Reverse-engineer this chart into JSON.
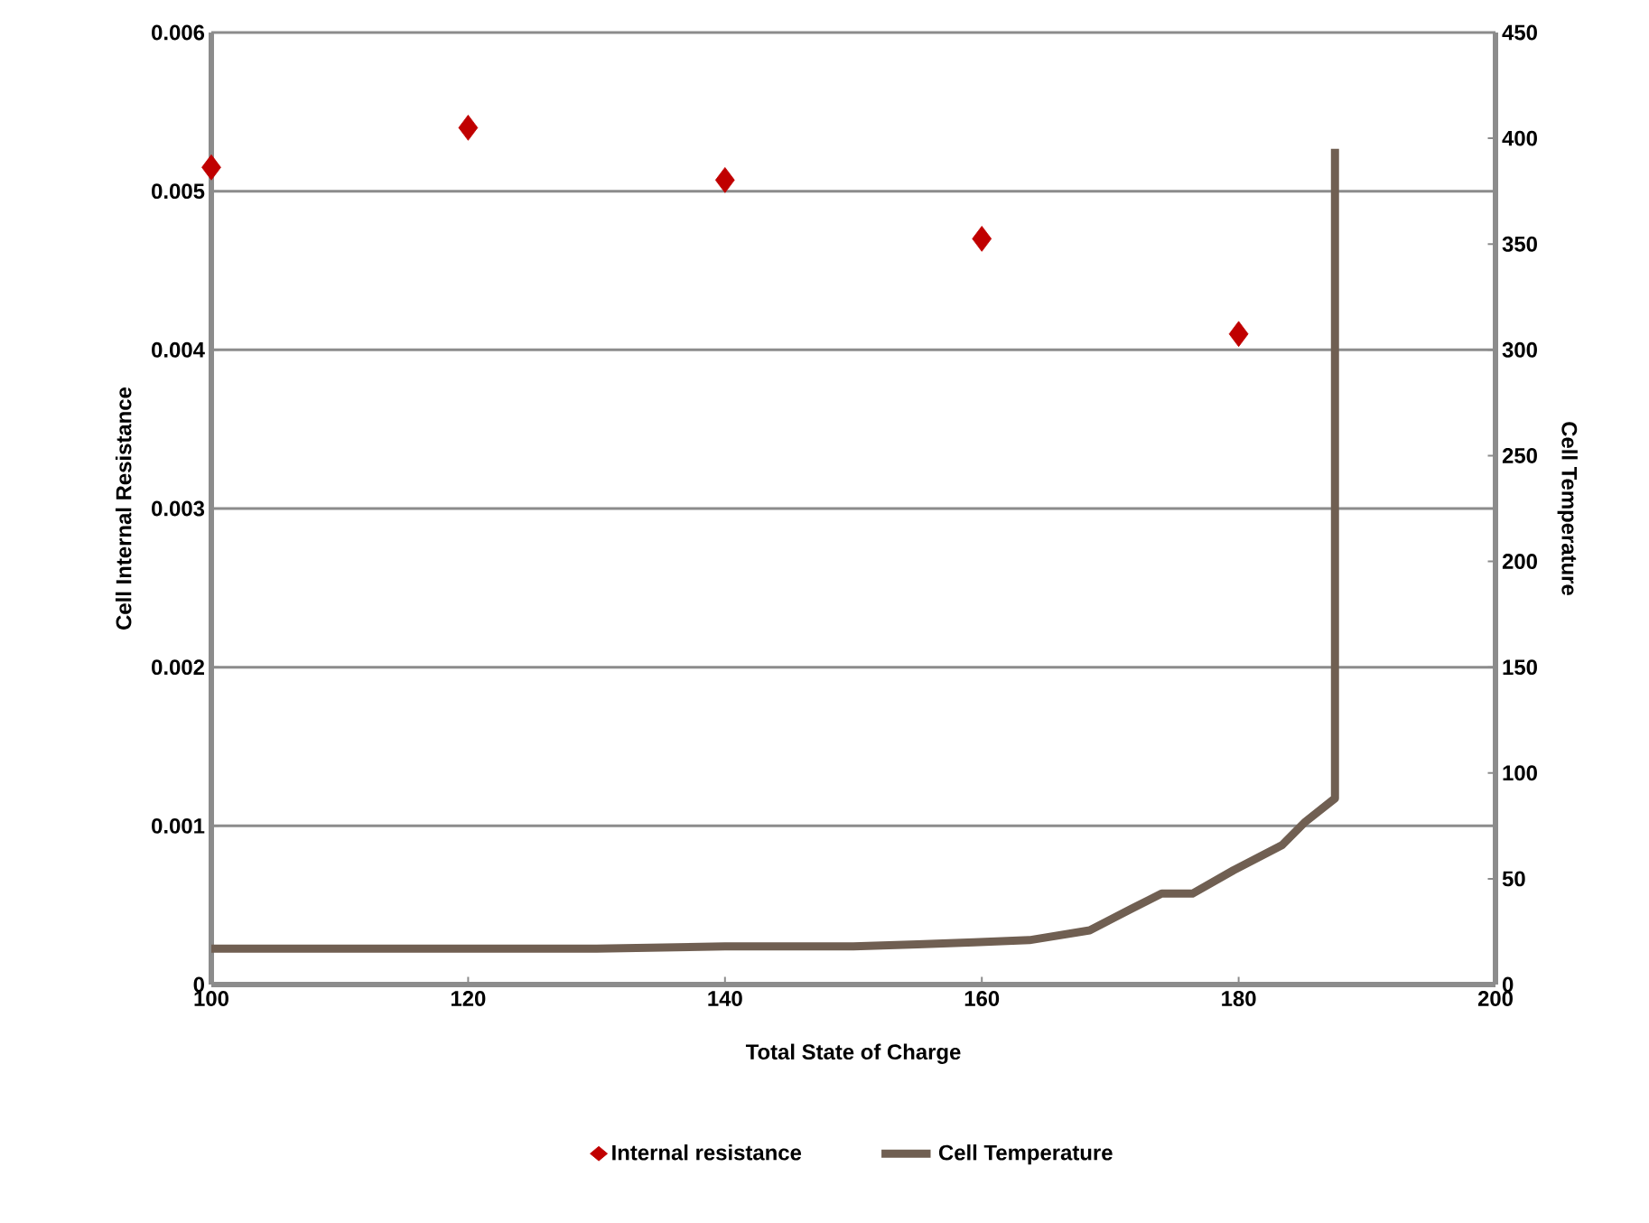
{
  "chart_data": {
    "type": "scatter",
    "xlabel": "Total State of Charge",
    "ylabel": "Cell Internal Resistance",
    "y2label": "Cell Temperature",
    "xlim": [
      100,
      200
    ],
    "xticks": [
      100,
      120,
      140,
      160,
      180,
      200
    ],
    "ylim": [
      0,
      0.006
    ],
    "yticks": [
      0,
      0.001,
      0.002,
      0.003,
      0.004,
      0.005,
      0.006
    ],
    "y2lim": [
      0,
      450
    ],
    "y2ticks": [
      0,
      50,
      100,
      150,
      200,
      250,
      300,
      350,
      400,
      450
    ],
    "grid": "y",
    "legend": "bottom",
    "series": [
      {
        "name": "Internal resistance",
        "marker": "diamond",
        "color": "#c00000",
        "x": [
          100,
          120,
          140,
          160,
          180
        ],
        "values": [
          0.00515,
          0.0054,
          0.00507,
          0.0047,
          0.0041
        ]
      },
      {
        "name": "Cell Temperature",
        "type": "line",
        "axis": "y2",
        "marker": "none",
        "line_style": "solid",
        "color": "#705f52",
        "x": [
          100,
          120,
          130,
          140,
          150,
          155,
          159.4,
          163.7,
          168.4,
          171.7,
          174,
          176.4,
          179.6,
          183.4,
          185.2,
          187.5,
          187.5
        ],
        "values": [
          17,
          17,
          17,
          18,
          18,
          19,
          20,
          21,
          25.6,
          36,
          43,
          43,
          54,
          66,
          77,
          88,
          395
        ]
      }
    ]
  }
}
